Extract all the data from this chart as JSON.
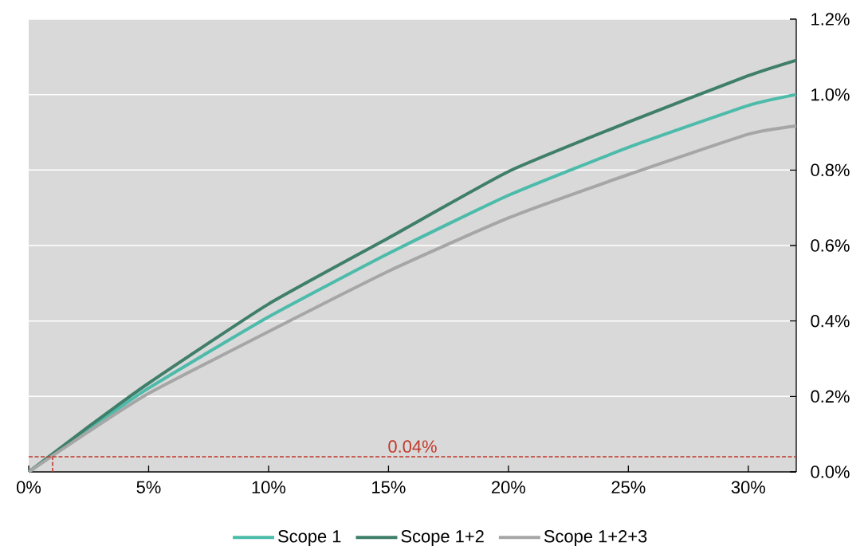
{
  "chart_data": {
    "type": "line",
    "xlim": [
      0,
      32
    ],
    "ylim": [
      0,
      1.2
    ],
    "xticks": [
      {
        "value": 0,
        "label": "0%"
      },
      {
        "value": 5,
        "label": "5%"
      },
      {
        "value": 10,
        "label": "10%"
      },
      {
        "value": 15,
        "label": "15%"
      },
      {
        "value": 20,
        "label": "20%"
      },
      {
        "value": 25,
        "label": "25%"
      },
      {
        "value": 30,
        "label": "30%"
      }
    ],
    "yticks": [
      {
        "value": 0,
        "label": "0.0%"
      },
      {
        "value": 0.2,
        "label": "0.2%"
      },
      {
        "value": 0.4,
        "label": "0.4%"
      },
      {
        "value": 0.6,
        "label": "0.6%"
      },
      {
        "value": 0.8,
        "label": "0.8%"
      },
      {
        "value": 1.0,
        "label": "1.0%"
      },
      {
        "value": 1.2,
        "label": "1.2%"
      }
    ],
    "grid": "y",
    "legend": "bottom",
    "marker": "none",
    "line_style": "solid",
    "x": [
      0,
      2.5,
      5,
      10,
      15,
      20,
      25,
      30,
      32
    ],
    "series": [
      {
        "name": "Scope 1",
        "color": "#4dbbaa",
        "values": [
          0,
          0.113,
          0.222,
          0.411,
          0.579,
          0.733,
          0.86,
          0.971,
          1.0
        ]
      },
      {
        "name": "Scope 1+2",
        "color": "#3f7f6a",
        "values": [
          0,
          0.12,
          0.235,
          0.445,
          0.62,
          0.796,
          0.927,
          1.05,
          1.091
        ]
      },
      {
        "name": "Scope 1+2+3",
        "color": "#a6a6a6",
        "values": [
          0,
          0.107,
          0.208,
          0.372,
          0.532,
          0.673,
          0.788,
          0.895,
          0.917
        ]
      },
      {
        "color": "#c0392b",
        "line_style": "dashed",
        "x": [
          1,
          1
        ],
        "values": [
          0,
          0.04
        ]
      }
    ],
    "ref_lines": [
      {
        "axis": "y",
        "value": 0.04,
        "label": "0.04%",
        "color": "#c0392b",
        "line_style": "dashed"
      }
    ]
  }
}
